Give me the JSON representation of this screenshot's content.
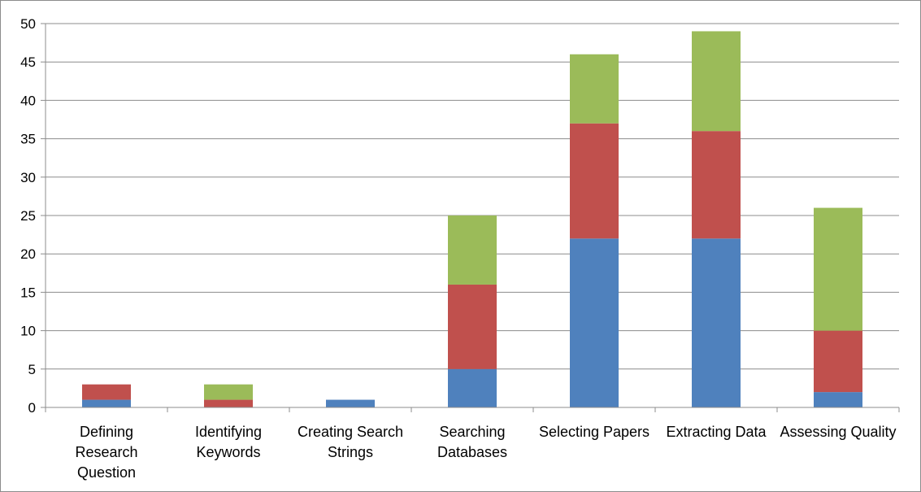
{
  "chart_data": {
    "type": "bar",
    "stacked": true,
    "categories": [
      "Defining Research Question",
      "Identifying Keywords",
      "Creating Search Strings",
      "Searching Databases",
      "Selecting Papers",
      "Extracting Data",
      "Assessing Quality"
    ],
    "category_label_lines": [
      [
        "Defining",
        "Research",
        "Question"
      ],
      [
        "Identifying",
        "Keywords"
      ],
      [
        "Creating Search",
        "Strings"
      ],
      [
        "Searching",
        "Databases"
      ],
      [
        "Selecting Papers"
      ],
      [
        "Extracting Data"
      ],
      [
        "Assessing Quality"
      ]
    ],
    "series": [
      {
        "color": "#4f81bd",
        "values": [
          1,
          0,
          1,
          5,
          22,
          22,
          2
        ]
      },
      {
        "color": "#c0504d",
        "values": [
          2,
          1,
          0,
          11,
          15,
          14,
          8
        ]
      },
      {
        "color": "#9bbb59",
        "values": [
          0,
          2,
          0,
          9,
          9,
          13,
          16
        ]
      }
    ],
    "ylim": [
      0,
      50
    ],
    "yticks": [
      0,
      5,
      10,
      15,
      20,
      25,
      30,
      35,
      40,
      45,
      50
    ],
    "grid": true,
    "legend": "none",
    "title": "",
    "xlabel": "",
    "ylabel": ""
  }
}
